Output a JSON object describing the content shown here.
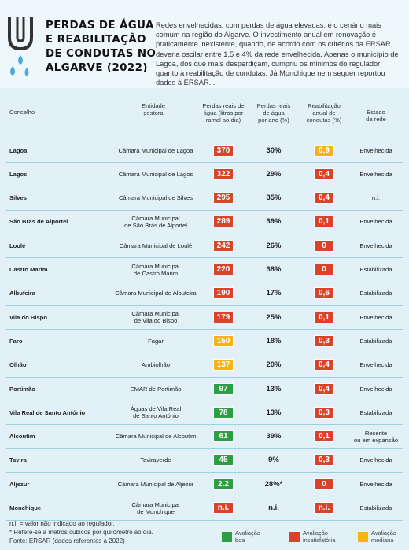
{
  "header": {
    "title": "PERDAS DE ÁGUA\nE REABILITAÇÃO\nDE CONDUTAS NO\nALGARVE (2022)",
    "intro": "Redes envelhecidas, com perdas de água elevadas, é o cenário mais comum na região do Algarve. O investimento anual em renovação é praticamente inexistente, quando, de acordo com os critérios da ERSAR, deveria oscilar entre 1,5 e 4% da rede envelhecida. Apenas o município de Lagoa, dos que mais desperdiçam, cumpriu os mínimos do regulador quanto à reabilitação de condutas. Já Monchique nem sequer reportou dados à ERSAR..."
  },
  "table": {
    "columns": [
      "Concelho",
      "Entidade\ngestora",
      "Perdas reais de\nágua (litros por\nramal ao dia)",
      "Perdas reais\nde água\npor ano (%)",
      "Reabilitação\nanual de\ncondutas (%)",
      "Estado\nda rede"
    ],
    "rows": [
      {
        "concelho": "Lagoa",
        "entidade": "Câmara Municipal de Lagoa",
        "perdas": "370",
        "perdas_color": "#d9432b",
        "perdas_ano": "30%",
        "reab": "0,9",
        "reab_color": "#f4b21c",
        "estado": "Envelhecida"
      },
      {
        "concelho": "Lagos",
        "entidade": "Câmara Municipal de Lagos",
        "perdas": "322",
        "perdas_color": "#d9432b",
        "perdas_ano": "29%",
        "reab": "0,4",
        "reab_color": "#d9432b",
        "estado": "Envelhecida"
      },
      {
        "concelho": "Silves",
        "entidade": "Câmara Municipal de Silves",
        "perdas": "295",
        "perdas_color": "#d9432b",
        "perdas_ano": "35%",
        "reab": "0,4",
        "reab_color": "#d9432b",
        "estado": "n.i."
      },
      {
        "concelho": "São Brás de Alportel",
        "entidade": "Câmara Municipal\nde São Brás de Alportel",
        "perdas": "289",
        "perdas_color": "#d9432b",
        "perdas_ano": "39%",
        "reab": "0,1",
        "reab_color": "#d9432b",
        "estado": "Envelhecida"
      },
      {
        "concelho": "Loulé",
        "entidade": "Câmara Municipal de Loulé",
        "perdas": "242",
        "perdas_color": "#d9432b",
        "perdas_ano": "26%",
        "reab": "0",
        "reab_color": "#d9432b",
        "estado": "Envelhecida"
      },
      {
        "concelho": "Castro Marim",
        "entidade": "Câmara Municipal\nde Castro Marim",
        "perdas": "220",
        "perdas_color": "#d9432b",
        "perdas_ano": "38%",
        "reab": "0",
        "reab_color": "#d9432b",
        "estado": "Estabilizada"
      },
      {
        "concelho": "Albufeira",
        "entidade": "Câmara Municipal de Albufeira",
        "perdas": "190",
        "perdas_color": "#d9432b",
        "perdas_ano": "17%",
        "reab": "0,6",
        "reab_color": "#d9432b",
        "estado": "Estabilizada"
      },
      {
        "concelho": "Vila do Bispo",
        "entidade": "Câmara Municipal\nde Vila do Bispo",
        "perdas": "179",
        "perdas_color": "#d9432b",
        "perdas_ano": "25%",
        "reab": "0,1",
        "reab_color": "#d9432b",
        "estado": "Envelhecida"
      },
      {
        "concelho": "Faro",
        "entidade": "Fagar",
        "perdas": "150",
        "perdas_color": "#f4b21c",
        "perdas_ano": "18%",
        "reab": "0,3",
        "reab_color": "#d9432b",
        "estado": "Estabilizada"
      },
      {
        "concelho": "Olhão",
        "entidade": "Ambiolhão",
        "perdas": "137",
        "perdas_color": "#f4b21c",
        "perdas_ano": "20%",
        "reab": "0,4",
        "reab_color": "#d9432b",
        "estado": "Envelhecida"
      },
      {
        "concelho": "Portimão",
        "entidade": "EMAR de Portimão",
        "perdas": "97",
        "perdas_color": "#2e9e44",
        "perdas_ano": "13%",
        "reab": "0,4",
        "reab_color": "#d9432b",
        "estado": "Envelhecida"
      },
      {
        "concelho": "Vila Real de Santo António",
        "entidade": "Águas de Vila Real\nde Santo António",
        "perdas": "78",
        "perdas_color": "#2e9e44",
        "perdas_ano": "13%",
        "reab": "0,3",
        "reab_color": "#d9432b",
        "estado": "Estabilizada"
      },
      {
        "concelho": "Alcoutim",
        "entidade": "Câmara Municipal de Alcoutim",
        "perdas": "61",
        "perdas_color": "#2e9e44",
        "perdas_ano": "39%",
        "reab": "0,1",
        "reab_color": "#d9432b",
        "estado": "Recente\nou em expansão"
      },
      {
        "concelho": "Tavira",
        "entidade": "Taviraverde",
        "perdas": "45",
        "perdas_color": "#2e9e44",
        "perdas_ano": "9%",
        "reab": "0,3",
        "reab_color": "#d9432b",
        "estado": "Envelhecida"
      },
      {
        "concelho": "Aljezur",
        "entidade": "Câmara Municipal de Aljezur",
        "perdas": "2.2",
        "perdas_color": "#2e9e44",
        "perdas_ano": "28%*",
        "reab": "0",
        "reab_color": "#d9432b",
        "estado": "Envelhecida"
      },
      {
        "concelho": "Monchique",
        "entidade": "Câmara Municipal\nde Monchique",
        "perdas": "n.i.",
        "perdas_color": "#d9432b",
        "perdas_ano": "n.i.",
        "reab": "n.i.",
        "reab_color": "#d9432b",
        "estado": "Estabilizada"
      }
    ]
  },
  "footer": {
    "notes": [
      "n.i. = valor não indicado ao regulador.",
      "* Refere-se a metros cúbicos por quilómetro ao dia.",
      "Fonte: ERSAR (dados referentes a 2022)"
    ],
    "legend": [
      {
        "label": "Avaliação\nboa",
        "color": "#2e9e44"
      },
      {
        "label": "Avaliação\ninsatisfatória",
        "color": "#d9432b"
      },
      {
        "label": "Avaliação\nmediana",
        "color": "#f4b21c"
      }
    ]
  }
}
